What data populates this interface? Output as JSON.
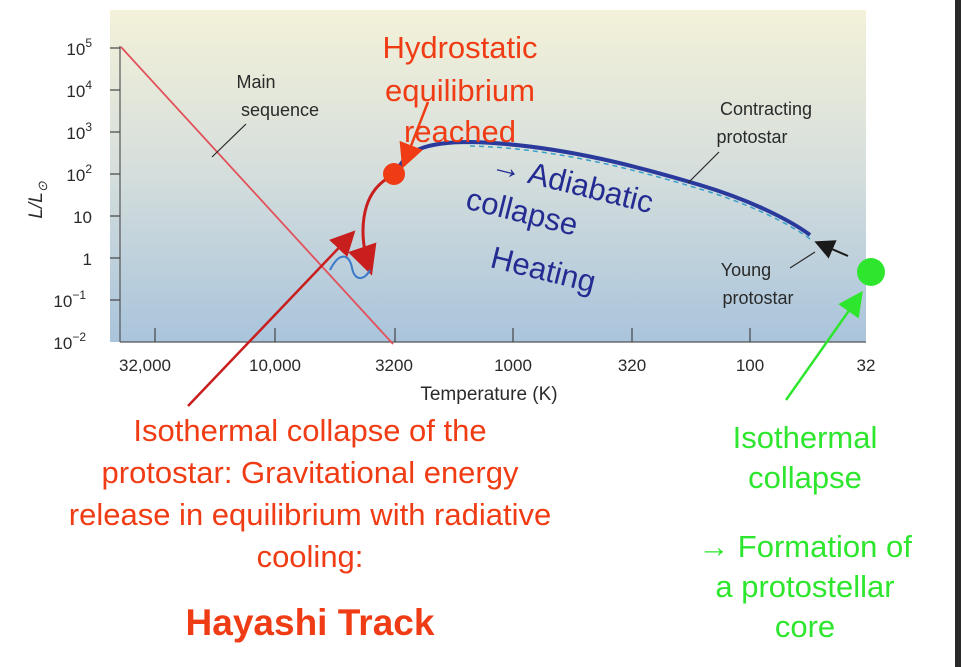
{
  "axes": {
    "ylabel": "L/L",
    "ylabel_sub": "⊙",
    "xlabel": "Temperature (K)",
    "y_ticks": [
      {
        "base": "10",
        "exp": "5"
      },
      {
        "base": "10",
        "exp": "4"
      },
      {
        "base": "10",
        "exp": "3"
      },
      {
        "base": "10",
        "exp": "2"
      },
      {
        "base": "10",
        "exp": ""
      },
      {
        "base": "1",
        "exp": ""
      },
      {
        "base": "10",
        "exp": "−1"
      },
      {
        "base": "10",
        "exp": "−2"
      }
    ],
    "x_ticks": [
      "32,000",
      "10,000",
      "3200",
      "1000",
      "320",
      "100",
      "32"
    ]
  },
  "labels": {
    "main_sequence": [
      "Main",
      "sequence"
    ],
    "contracting_protostar": [
      "Contracting",
      "protostar"
    ],
    "young_protostar": [
      "Young",
      "protostar"
    ]
  },
  "annotations": {
    "hydrostatic": [
      "Hydrostatic",
      "equilibrium",
      "reached"
    ],
    "adiabatic": [
      "→ Adiabatic",
      "collapse",
      "Heating"
    ],
    "isothermal_red": [
      "Isothermal collapse of the",
      "protostar:  Gravitational energy",
      "release in equilibrium with radiative",
      "cooling:"
    ],
    "hayashi": "Hayashi Track",
    "isothermal_green": [
      "Isothermal",
      "collapse"
    ],
    "formation": [
      "→ Formation of",
      "a protostellar",
      "core"
    ]
  },
  "colors": {
    "background_top": "#f3f1d8",
    "background_bottom": "#a9c4dc",
    "main_sequence": "#e2505a",
    "track": "#2a3a9c",
    "red_annotation": "#f03c14",
    "green_annotation": "#2ee62e",
    "navy_annotation": "#242c92"
  }
}
